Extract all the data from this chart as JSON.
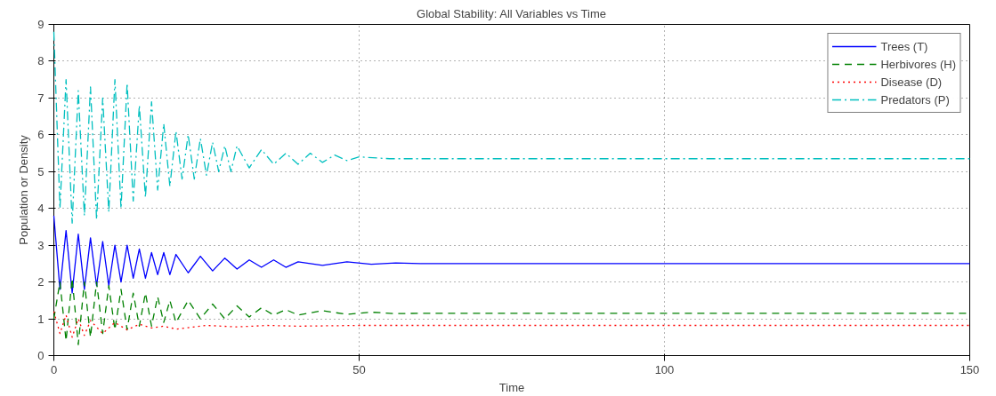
{
  "chart_data": {
    "type": "line",
    "title": "Global Stability: All Variables vs Time",
    "xlabel": "Time",
    "ylabel": "Population or Density",
    "xlim": [
      0,
      150
    ],
    "ylim": [
      0,
      9
    ],
    "xticks": [
      0,
      50,
      100,
      150
    ],
    "yticks": [
      0,
      1,
      2,
      3,
      4,
      5,
      6,
      7,
      8,
      9
    ],
    "grid": true,
    "legend": "top right",
    "series": [
      {
        "name": "Trees (T)",
        "color": "#0000ff",
        "line_style": "solid",
        "x": [
          0,
          1,
          2,
          3,
          4,
          5,
          6,
          7,
          8,
          9,
          10,
          11,
          12,
          13,
          14,
          15,
          16,
          17,
          18,
          19,
          20,
          22,
          24,
          26,
          28,
          30,
          32,
          34,
          36,
          38,
          40,
          44,
          48,
          52,
          56,
          60,
          80,
          100,
          120,
          150
        ],
        "values": [
          3.8,
          1.8,
          3.4,
          1.7,
          3.3,
          1.8,
          3.2,
          1.9,
          3.1,
          1.9,
          3.0,
          2.0,
          3.0,
          2.1,
          2.9,
          2.1,
          2.8,
          2.2,
          2.8,
          2.2,
          2.75,
          2.25,
          2.7,
          2.3,
          2.65,
          2.35,
          2.6,
          2.4,
          2.6,
          2.4,
          2.55,
          2.45,
          2.55,
          2.48,
          2.52,
          2.5,
          2.5,
          2.5,
          2.5,
          2.5
        ]
      },
      {
        "name": "Herbivores (H)",
        "color": "#008000",
        "line_style": "dashed",
        "x": [
          0,
          1,
          2,
          3,
          4,
          5,
          6,
          7,
          8,
          9,
          10,
          11,
          12,
          13,
          14,
          15,
          16,
          17,
          18,
          19,
          20,
          22,
          24,
          26,
          28,
          30,
          32,
          34,
          36,
          38,
          40,
          44,
          48,
          52,
          56,
          60,
          80,
          100,
          120,
          150
        ],
        "values": [
          1.0,
          2.0,
          0.4,
          2.1,
          0.3,
          2.0,
          0.5,
          2.0,
          0.6,
          1.9,
          0.7,
          1.8,
          0.7,
          1.7,
          0.8,
          1.7,
          0.8,
          1.6,
          0.9,
          1.5,
          0.9,
          1.5,
          1.0,
          1.4,
          1.0,
          1.35,
          1.05,
          1.3,
          1.1,
          1.25,
          1.1,
          1.22,
          1.12,
          1.18,
          1.14,
          1.15,
          1.15,
          1.15,
          1.15,
          1.15
        ]
      },
      {
        "name": "Disease (D)",
        "color": "#ff0000",
        "line_style": "dotted",
        "x": [
          0,
          1,
          2,
          3,
          4,
          5,
          6,
          8,
          10,
          12,
          14,
          16,
          18,
          20,
          25,
          30,
          35,
          40,
          50,
          60,
          80,
          100,
          120,
          150
        ],
        "values": [
          1.2,
          0.6,
          1.1,
          0.5,
          1.0,
          0.55,
          0.95,
          0.6,
          0.9,
          0.7,
          0.85,
          0.75,
          0.8,
          0.72,
          0.82,
          0.78,
          0.82,
          0.8,
          0.82,
          0.82,
          0.82,
          0.82,
          0.82,
          0.82
        ]
      },
      {
        "name": "Predators (P)",
        "color": "#00bfbf",
        "line_style": "dashdot",
        "x": [
          0,
          1,
          2,
          3,
          4,
          5,
          6,
          7,
          8,
          9,
          10,
          11,
          12,
          13,
          14,
          15,
          16,
          17,
          18,
          19,
          20,
          21,
          22,
          23,
          24,
          25,
          26,
          27,
          28,
          29,
          30,
          32,
          34,
          36,
          38,
          40,
          42,
          44,
          46,
          48,
          50,
          55,
          60,
          80,
          100,
          120,
          150
        ],
        "values": [
          8.8,
          4.0,
          7.5,
          3.6,
          7.2,
          3.8,
          7.3,
          3.7,
          7.0,
          3.9,
          7.5,
          4.0,
          7.4,
          4.2,
          6.8,
          4.3,
          6.9,
          4.5,
          6.3,
          4.6,
          6.1,
          4.8,
          6.0,
          4.8,
          5.9,
          4.9,
          5.8,
          5.0,
          5.7,
          5.0,
          5.7,
          5.1,
          5.6,
          5.2,
          5.5,
          5.2,
          5.5,
          5.25,
          5.45,
          5.3,
          5.4,
          5.35,
          5.35,
          5.35,
          5.35,
          5.35,
          5.35
        ]
      }
    ]
  }
}
